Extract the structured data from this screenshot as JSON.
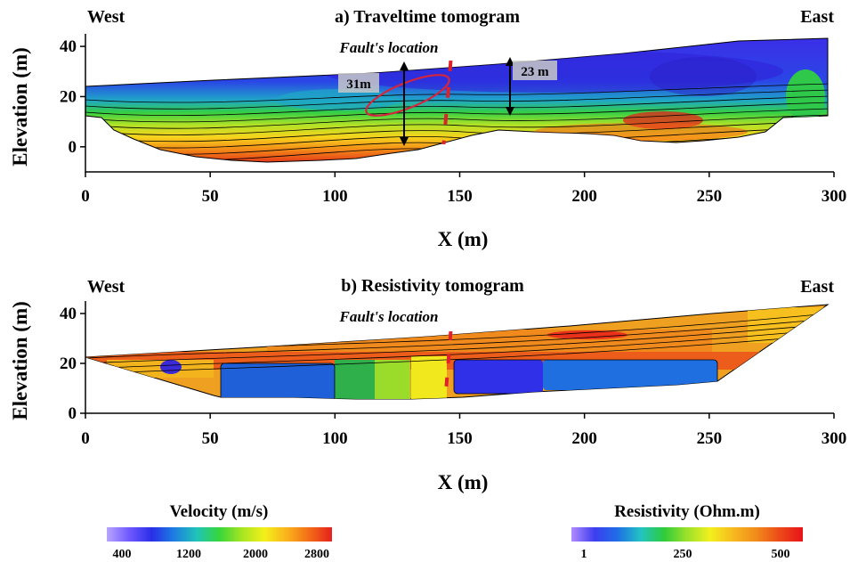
{
  "chart_data": [
    {
      "type": "heatmap",
      "title": "a) Traveltime tomogram",
      "xlabel": "X (m)",
      "ylabel": "Elevation (m)",
      "xlim": [
        0,
        300
      ],
      "ylim": [
        -10,
        45
      ],
      "xticks": [
        "0",
        "50",
        "100",
        "150",
        "200",
        "250",
        "300"
      ],
      "yticks": [
        "0",
        "20",
        "40"
      ],
      "ytick_values": [
        0,
        20,
        40
      ],
      "west_label": "West",
      "east_label": "East",
      "annotations": {
        "fault": "Fault's location",
        "depth_left": "31m",
        "depth_right": "23 m"
      },
      "fault_x": 145,
      "colorbar": {
        "title": "Velocity (m/s)",
        "ticks": [
          "400",
          "1200",
          "2000",
          "2800"
        ],
        "colors": [
          "#b8a6ff",
          "#6f58ff",
          "#2a2ee8",
          "#1c7fe0",
          "#20c4b8",
          "#37d63a",
          "#a6e522",
          "#f4f01a",
          "#f9b21b",
          "#f36b17",
          "#e6201c"
        ]
      }
    },
    {
      "type": "heatmap",
      "title": "b) Resistivity tomogram",
      "xlabel": "X (m)",
      "ylabel": "Elevation (m)",
      "xlim": [
        0,
        300
      ],
      "ylim": [
        0,
        45
      ],
      "xticks": [
        "0",
        "50",
        "100",
        "150",
        "200",
        "250",
        "300"
      ],
      "yticks": [
        "0",
        "20",
        "40"
      ],
      "ytick_values": [
        0,
        20,
        40
      ],
      "west_label": "West",
      "east_label": "East",
      "annotations": {
        "fault": "Fault's location"
      },
      "fault_x": 145,
      "colorbar": {
        "title": "Resistivity (Ohm.m)",
        "ticks": [
          "1",
          "250",
          "500"
        ],
        "colors": [
          "#b08cff",
          "#3d3df0",
          "#1f6fe6",
          "#22c3c3",
          "#2ecc3a",
          "#9be22a",
          "#f2f01e",
          "#f7b81e",
          "#f18a1a",
          "#ec4a18",
          "#e8121a"
        ]
      }
    }
  ]
}
